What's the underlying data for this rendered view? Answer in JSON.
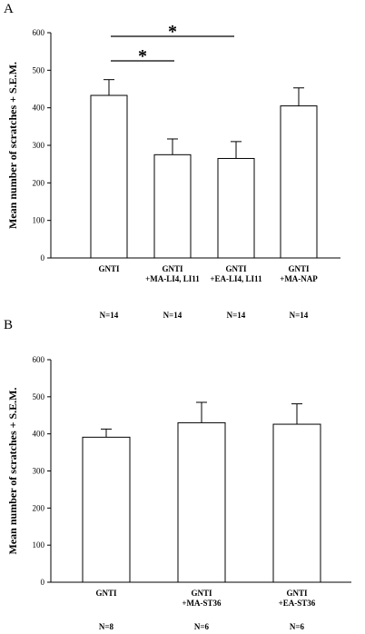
{
  "chart_data": [
    {
      "type": "bar",
      "panel_label": "A",
      "ylabel": "Mean number of scratches + S.E.M.",
      "ylim": [
        0,
        600
      ],
      "yticks": [
        0,
        100,
        200,
        300,
        400,
        500,
        600
      ],
      "categories": [
        [
          "GNTI"
        ],
        [
          "GNTI",
          "+MA-LI4, LI11"
        ],
        [
          "GNTI",
          "+EA-LI4, LI11"
        ],
        [
          "GNTI",
          "+MA-NAP"
        ]
      ],
      "values": [
        433,
        275,
        265,
        405
      ],
      "errors": [
        42,
        42,
        45,
        48
      ],
      "n_labels": [
        "N=14",
        "N=14",
        "N=14",
        "N=14"
      ],
      "significance": [
        {
          "from": 0,
          "to": 2,
          "label": "*"
        },
        {
          "from": 0,
          "to": 1,
          "label": "*"
        }
      ]
    },
    {
      "type": "bar",
      "panel_label": "B",
      "ylabel": "Mean number of scratches + S.E.M.",
      "ylim": [
        0,
        600
      ],
      "yticks": [
        0,
        100,
        200,
        300,
        400,
        500,
        600
      ],
      "categories": [
        [
          "GNTI"
        ],
        [
          "GNTI",
          "+MA-ST36"
        ],
        [
          "GNTI",
          "+EA-ST36"
        ]
      ],
      "values": [
        391,
        430,
        426
      ],
      "errors": [
        22,
        55,
        55
      ],
      "n_labels": [
        "N=8",
        "N=6",
        "N=6"
      ],
      "significance": []
    }
  ]
}
